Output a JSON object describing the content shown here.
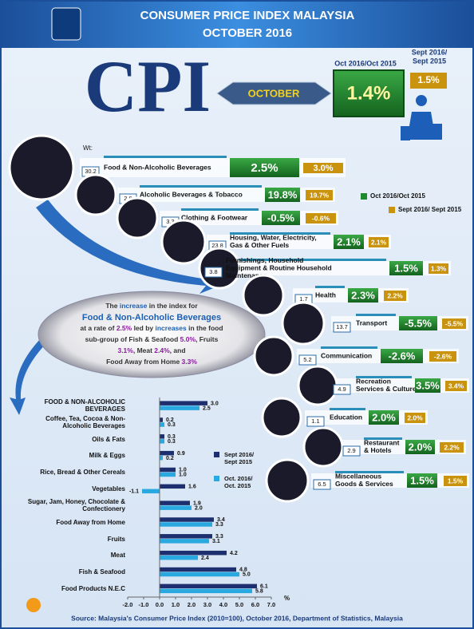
{
  "header": {
    "title": "CONSUMER PRICE INDEX MALAYSIA",
    "subtitle": "OCTOBER 2016"
  },
  "cpi": {
    "label": "CPI",
    "month": "OCTOBER",
    "yoy_label": "Oct 2016/Oct 2015",
    "yoy_value": "1.4%",
    "mom_label": [
      "Sept 2016/",
      "Sept 2015"
    ],
    "mom_value": "1.5%"
  },
  "weights_label": "Wt:",
  "legend": [
    "Oct 2016/Oct 2015",
    "Sept 2016/ Sept 2015"
  ],
  "groups": [
    {
      "weight": "30.2",
      "name": [
        "Food & Non-Alcoholic Beverages"
      ],
      "yoy": "2.5%",
      "mom": "3.0%"
    },
    {
      "weight": "2.9",
      "name": [
        "Alcoholic Beverages & Tobacco"
      ],
      "yoy": "19.8%",
      "mom": "19.7%"
    },
    {
      "weight": "3.3",
      "name": [
        "Clothing & Footwear"
      ],
      "yoy": "-0.5%",
      "mom": "-0.6%"
    },
    {
      "weight": "23.8",
      "name": [
        "Housing, Water, Electricity,",
        "Gas &  Other Fuels"
      ],
      "yoy": "2.1%",
      "mom": "2.1%"
    },
    {
      "weight": "3.8",
      "name": [
        "Furnishings, Household",
        "Equipment & Routine Household",
        "Maintenance"
      ],
      "yoy": "1.5%",
      "mom": "1.3%"
    },
    {
      "weight": "1.7",
      "name": [
        "Health"
      ],
      "yoy": "2.3%",
      "mom": "2.2%"
    },
    {
      "weight": "13.7",
      "name": [
        "Transport"
      ],
      "yoy": "-5.5%",
      "mom": "-5.5%"
    },
    {
      "weight": "5.2",
      "name": [
        "Communication"
      ],
      "yoy": "-2.6%",
      "mom": "-2.6%"
    },
    {
      "weight": "4.9",
      "name": [
        "Recreation",
        "Services & Culture"
      ],
      "yoy": "3.5%",
      "mom": "3.4%"
    },
    {
      "weight": "1.1",
      "name": [
        "Education"
      ],
      "yoy": "2.0%",
      "mom": "2.0%"
    },
    {
      "weight": "2.9",
      "name": [
        "Restaurant",
        "& Hotels"
      ],
      "yoy": "2.0%",
      "mom": "2.2%"
    },
    {
      "weight": "6.5",
      "name": [
        "Miscellaneous",
        "Goods & Services"
      ],
      "yoy": "1.5%",
      "mom": "1.5%"
    }
  ],
  "callout": [
    [
      {
        "text": "The ",
        "color": "#333333"
      },
      {
        "text": "increase",
        "color": "#1a5fb4"
      },
      {
        "text": " in the index for",
        "color": "#333333"
      }
    ],
    [
      {
        "text": "Food & Non-Alcoholic  Beverages",
        "color": "#1a5fb4"
      }
    ],
    [
      {
        "text": "at a rate of ",
        "color": "#333333"
      },
      {
        "text": "2.5%",
        "color": "#8a1a9e"
      },
      {
        "text": " led by ",
        "color": "#333333"
      },
      {
        "text": "increases",
        "color": "#1a5fb4"
      },
      {
        "text": " in the food",
        "color": "#333333"
      }
    ],
    [
      {
        "text": "sub-group of Fish & Seafood ",
        "color": "#333333"
      },
      {
        "text": "5.0%",
        "color": "#8a1a9e"
      },
      {
        "text": ", Fruits",
        "color": "#333333"
      }
    ],
    [
      {
        "text": "3.1%",
        "color": "#8a1a9e"
      },
      {
        "text": ", Meat ",
        "color": "#333333"
      },
      {
        "text": "2.4%",
        "color": "#8a1a9e"
      },
      {
        "text": ", and",
        "color": "#333333"
      }
    ],
    [
      {
        "text": "Food Away from Home ",
        "color": "#333333"
      },
      {
        "text": "3.3%",
        "color": "#8a1a9e"
      }
    ]
  ],
  "chart_data": {
    "type": "bar",
    "orientation": "horizontal",
    "categories": [
      "FOOD & NON-ALCOHOLIC BEVERAGES",
      "Coffee, Tea, Cocoa & Non-Alcoholic Beverages",
      "Oils & Fats",
      "Milk & Eggs",
      "Rice, Bread & Other Cereals",
      "Vegetables",
      "Sugar, Jam, Honey, Chocolate & Confectionery",
      "Food Away from Home",
      "Fruits",
      "Meat",
      "Fish & Seafood",
      "Food Products N.E.C"
    ],
    "series": [
      {
        "name": "Sept 2016/ Sept 2015",
        "color": "#1d2f6f",
        "values": [
          3.0,
          0.2,
          0.3,
          0.9,
          1.0,
          1.6,
          1.9,
          3.4,
          3.3,
          4.2,
          4.8,
          6.1
        ],
        "value_labels": [
          "3.0",
          "0.2",
          "0.3",
          "0.9",
          "1.0",
          "1.6",
          "1.9",
          "3.4",
          "3.3",
          "4.2",
          "4.8",
          "6.1"
        ]
      },
      {
        "name": "Oct. 2016/ Oct. 2015",
        "color": "#29a9e0",
        "values": [
          2.5,
          0.3,
          0.3,
          0.2,
          1.0,
          -1.1,
          2.0,
          3.3,
          3.1,
          2.4,
          5.0,
          5.8
        ],
        "value_labels": [
          "2.5",
          "0.3",
          "0.3",
          "0.2",
          "1.0",
          "-1.1",
          "2.0",
          "3.3",
          "3.1",
          "2.4",
          "5.0",
          "5.8"
        ]
      }
    ],
    "xlim": [
      -2,
      7
    ],
    "xticks": [
      {
        "value": -2,
        "label": "-2.0"
      },
      {
        "value": -1,
        "label": "-1.0"
      },
      {
        "value": 0,
        "label": "0.0"
      },
      {
        "value": 1,
        "label": "1.0"
      },
      {
        "value": 2,
        "label": "2.0"
      },
      {
        "value": 3,
        "label": "3.0"
      },
      {
        "value": 4,
        "label": "4.0"
      },
      {
        "value": 5,
        "label": "5.0"
      },
      {
        "value": 6,
        "label": "6.0"
      },
      {
        "value": 7,
        "label": "7.0"
      }
    ],
    "xlabel": "%"
  },
  "source": "Source: Malaysia's Consumer Price Index (2010=100), October 2016, Department of Statistics, Malaysia"
}
